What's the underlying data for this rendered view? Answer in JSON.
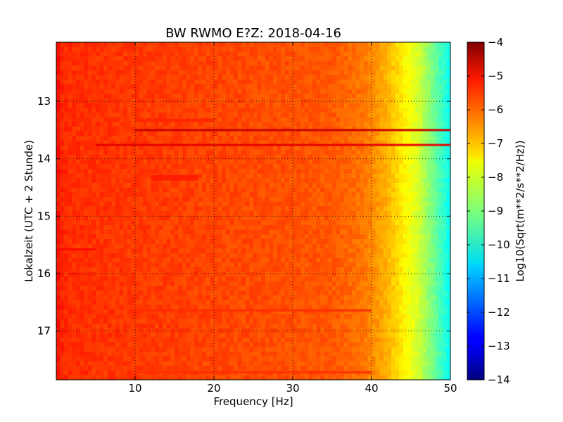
{
  "chart_data": {
    "type": "heatmap",
    "title": "BW RWMO E?Z: 2018-04-16",
    "xlabel": "Frequency [Hz]",
    "ylabel": "Lokalzeit (UTC + 2 Stunde)",
    "xlim": [
      0,
      50
    ],
    "ylim": [
      17.85,
      11.97
    ],
    "x_ticks": [
      10,
      20,
      30,
      40,
      50
    ],
    "y_ticks": [
      13,
      14,
      15,
      16,
      17
    ],
    "grid": true,
    "colorbar": {
      "label": "Log10(Sqrt(m**2/s**2/Hz))",
      "range": [
        -14,
        -4
      ],
      "ticks": [
        -4,
        -5,
        -6,
        -7,
        -8,
        -9,
        -10,
        -11,
        -12,
        -13,
        -14
      ],
      "colormap": "jet"
    },
    "frequency_profile": [
      {
        "f": 0,
        "v": -5.3
      },
      {
        "f": 0.5,
        "v": -5.6
      },
      {
        "f": 2,
        "v": -5.7
      },
      {
        "f": 35,
        "v": -6.1
      },
      {
        "f": 39,
        "v": -6.4
      },
      {
        "f": 42,
        "v": -7.0
      },
      {
        "f": 44,
        "v": -7.6
      },
      {
        "f": 46,
        "v": -8.2
      },
      {
        "f": 48,
        "v": -9.2
      },
      {
        "f": 50,
        "v": -10.2
      }
    ],
    "bands": [
      {
        "t_start": 13.48,
        "t_end": 13.52,
        "f_start": 10,
        "f_end": 50,
        "value": -4.7
      },
      {
        "t_start": 13.74,
        "t_end": 13.78,
        "f_start": 5,
        "f_end": 50,
        "value": -5.0
      },
      {
        "t_start": 13.3,
        "t_end": 13.36,
        "f_start": 10,
        "f_end": 20,
        "value": -5.6
      },
      {
        "t_start": 14.28,
        "t_end": 14.38,
        "f_start": 12,
        "f_end": 18,
        "value": -5.5
      },
      {
        "t_start": 15.56,
        "t_end": 15.6,
        "f_start": 0,
        "f_end": 5,
        "value": -5.3
      },
      {
        "t_start": 16.62,
        "t_end": 16.66,
        "f_start": 10,
        "f_end": 40,
        "value": -5.7
      },
      {
        "t_start": 17.7,
        "t_end": 17.74,
        "f_start": 10,
        "f_end": 40,
        "value": -5.7
      }
    ]
  },
  "colors": {
    "background": "#ffffff",
    "grid": "#000000"
  }
}
